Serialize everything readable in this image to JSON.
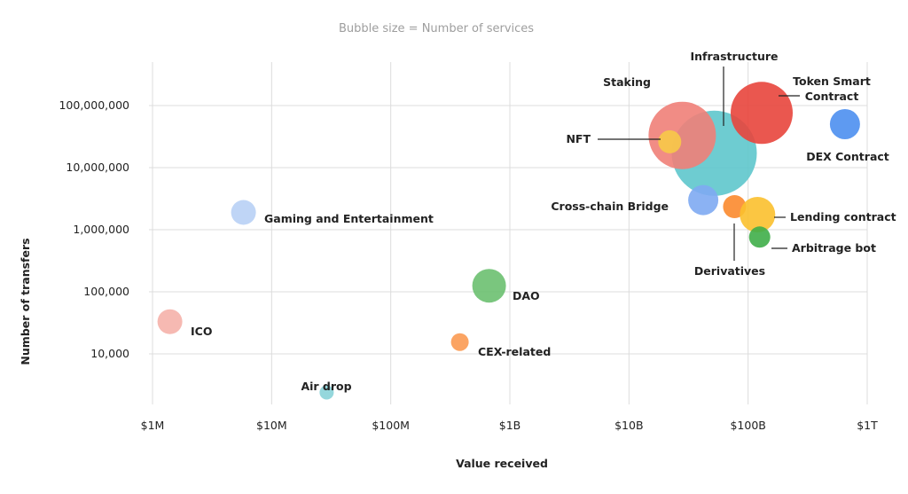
{
  "chart_data": {
    "type": "scatter",
    "subtitle": "Bubble size = Number of services",
    "xlabel": "Value received",
    "ylabel": "Number of transfers",
    "x_scale": "log",
    "y_scale": "log",
    "xlim": [
      1000000,
      1000000000000
    ],
    "ylim": [
      2000,
      500000000
    ],
    "x_ticks": [
      {
        "value": 1000000,
        "label": "$1M"
      },
      {
        "value": 10000000,
        "label": "$10M"
      },
      {
        "value": 100000000,
        "label": "$100M"
      },
      {
        "value": 1000000000,
        "label": "$1B"
      },
      {
        "value": 10000000000,
        "label": "$10B"
      },
      {
        "value": 100000000000,
        "label": "$100B"
      },
      {
        "value": 1000000000000,
        "label": "$1T"
      }
    ],
    "y_ticks": [
      {
        "value": 10000,
        "label": "10,000"
      },
      {
        "value": 100000,
        "label": "100,000"
      },
      {
        "value": 1000000,
        "label": "1,000,000"
      },
      {
        "value": 10000000,
        "label": "10,000,000"
      },
      {
        "value": 100000000,
        "label": "100,000,000"
      }
    ],
    "grid": true,
    "points": [
      {
        "name": "Infrastructure",
        "label_lines": [
          "Infrastructure"
        ],
        "x": 52000000000,
        "y": 17000000,
        "size": 48,
        "color": "#5ec6cc"
      },
      {
        "name": "NFT",
        "label_lines": [
          "NFT"
        ],
        "x": 28000000000,
        "y": 33000000,
        "size": 38,
        "color": "#f07f78"
      },
      {
        "name": "Token Smart Contract",
        "label_lines": [
          "Token Smart",
          "Contract"
        ],
        "x": 130000000000,
        "y": 76000000,
        "size": 35,
        "color": "#e8453c"
      },
      {
        "name": "Staking",
        "label_lines": [
          "Staking"
        ],
        "x": 22000000000,
        "y": 26000000,
        "size": 13,
        "color": "#f7c948"
      },
      {
        "name": "DEX Contract",
        "label_lines": [
          "DEX Contract"
        ],
        "x": 650000000000,
        "y": 50000000,
        "size": 17,
        "color": "#4c8ff0"
      },
      {
        "name": "Cross-chain Bridge",
        "label_lines": [
          "Cross-chain Bridge"
        ],
        "x": 42000000000,
        "y": 3000000,
        "size": 17,
        "color": "#7eaaf2"
      },
      {
        "name": "Derivatives",
        "label_lines": [
          "Derivatives"
        ],
        "x": 77000000000,
        "y": 2350000,
        "size": 13,
        "color": "#fb8a2e"
      },
      {
        "name": "Lending contract",
        "label_lines": [
          "Lending contract"
        ],
        "x": 120000000000,
        "y": 1750000,
        "size": 20,
        "color": "#fbc02d"
      },
      {
        "name": "Arbitrage bot",
        "label_lines": [
          "Arbitrage bot"
        ],
        "x": 125000000000,
        "y": 760000,
        "size": 12,
        "color": "#3fae49"
      },
      {
        "name": "Gaming and Entertainment",
        "label_lines": [
          "Gaming and Entertainment"
        ],
        "x": 5800000,
        "y": 1900000,
        "size": 14,
        "color": "#b8d0f5"
      },
      {
        "name": "DAO",
        "label_lines": [
          "DAO"
        ],
        "x": 670000000,
        "y": 125000,
        "size": 19,
        "color": "#6cc070"
      },
      {
        "name": "ICO",
        "label_lines": [
          "ICO"
        ],
        "x": 1400000,
        "y": 33000,
        "size": 14,
        "color": "#f5b1aa"
      },
      {
        "name": "CEX-related",
        "label_lines": [
          "CEX-related"
        ],
        "x": 380000000,
        "y": 15500,
        "size": 10,
        "color": "#fb9a52"
      },
      {
        "name": "Air drop",
        "label_lines": [
          "Air drop"
        ],
        "x": 29000000,
        "y": 2400,
        "size": 8,
        "color": "#8ad3d8"
      }
    ]
  }
}
